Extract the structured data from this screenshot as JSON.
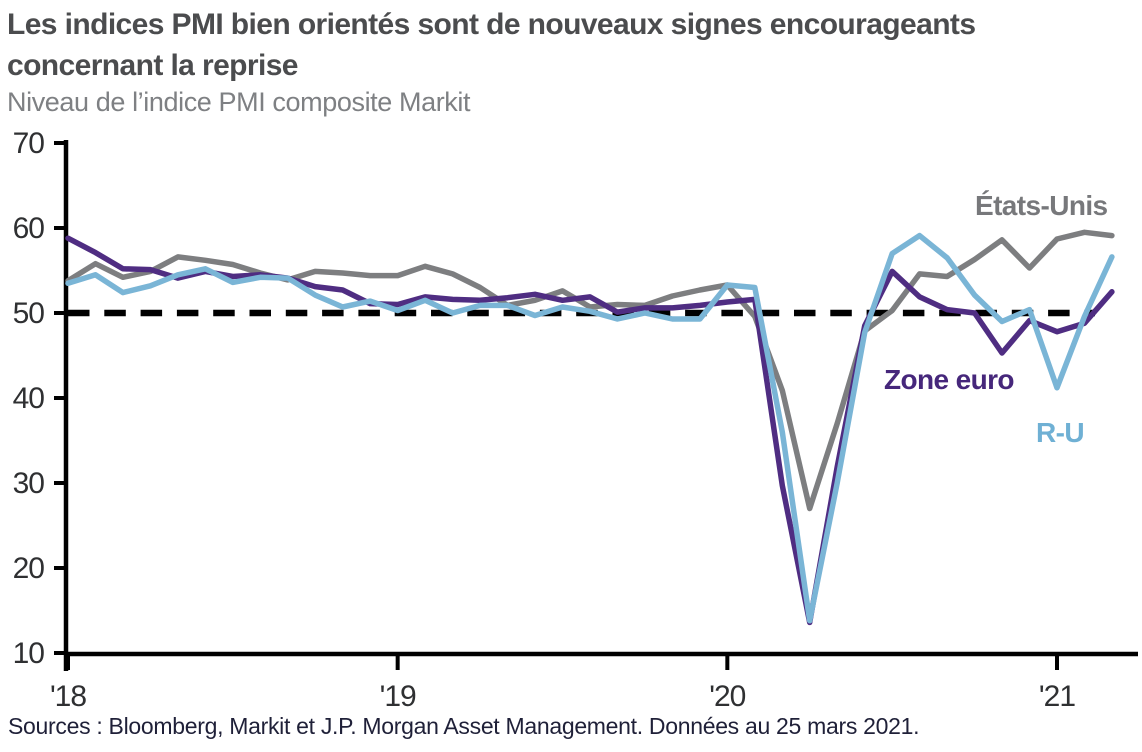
{
  "chart_data": {
    "type": "line",
    "title": "Les indices PMI bien orientés sont de nouveaux signes encourageants concernant la reprise",
    "title_lines": [
      "Les indices PMI bien orientés sont de nouveaux signes encourageants",
      "concernant la reprise"
    ],
    "subtitle": "Niveau de l’indice PMI composite Markit",
    "source": "Sources : Bloomberg, Markit et J.P. Morgan Asset Management. Données au 25 mars 2021.",
    "x_start": "2018-01",
    "x_end": "2021-03",
    "x_frequency": "monthly",
    "ylim": [
      10,
      70
    ],
    "yticks": [
      70,
      60,
      50,
      40,
      30,
      20,
      10
    ],
    "xticks": [
      {
        "label": "'18",
        "month_index": 0
      },
      {
        "label": "'19",
        "month_index": 12
      },
      {
        "label": "'20",
        "month_index": 24
      },
      {
        "label": "'21",
        "month_index": 36
      }
    ],
    "reference_line": 50,
    "grid": false,
    "legend_position": "inline labels near line ends",
    "axis_color": "#000000",
    "reference_line_color": "#000000",
    "series": [
      {
        "name": "États-Unis",
        "color": "#7d7e80",
        "values": [
          53.8,
          55.8,
          54.2,
          54.9,
          56.6,
          56.2,
          55.7,
          54.7,
          53.9,
          54.9,
          54.7,
          54.4,
          54.4,
          55.5,
          54.6,
          53.0,
          50.9,
          51.5,
          52.6,
          50.7,
          51.0,
          50.9,
          52.0,
          52.7,
          53.3,
          49.6,
          40.9,
          27.0,
          37.0,
          47.9,
          50.3,
          54.6,
          54.3,
          56.3,
          58.6,
          55.3,
          58.7,
          59.5,
          59.1
        ]
      },
      {
        "name": "Zone euro",
        "color": "#4f2d82",
        "values": [
          58.8,
          57.1,
          55.2,
          55.1,
          54.1,
          54.9,
          54.3,
          54.5,
          54.1,
          53.1,
          52.7,
          51.1,
          51.0,
          51.9,
          51.6,
          51.5,
          51.8,
          52.2,
          51.5,
          51.9,
          50.1,
          50.6,
          50.6,
          50.9,
          51.3,
          51.6,
          29.7,
          13.6,
          31.9,
          48.5,
          54.9,
          51.9,
          50.4,
          50.0,
          45.3,
          49.1,
          47.8,
          48.8,
          52.5
        ]
      },
      {
        "name": "R-U",
        "color": "#7ab5d6",
        "values": [
          53.5,
          54.5,
          52.4,
          53.2,
          54.5,
          55.2,
          53.6,
          54.2,
          54.1,
          52.1,
          50.7,
          51.4,
          50.3,
          51.5,
          50.0,
          50.9,
          50.9,
          49.7,
          50.7,
          50.2,
          49.3,
          50.0,
          49.3,
          49.3,
          53.3,
          53.0,
          36.0,
          13.8,
          30.0,
          47.7,
          57.0,
          59.1,
          56.5,
          52.1,
          49.0,
          50.4,
          41.2,
          49.6,
          56.6
        ]
      }
    ]
  }
}
